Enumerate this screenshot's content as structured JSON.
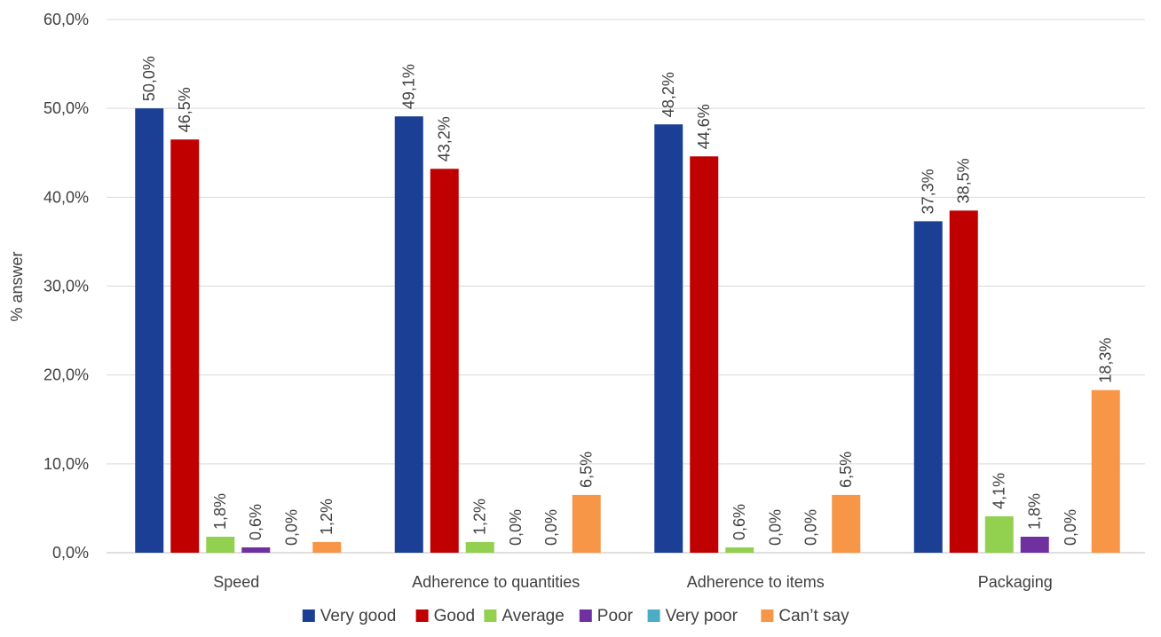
{
  "chart_data": {
    "type": "bar",
    "title": "",
    "xlabel": "",
    "ylabel": "% answer",
    "ylim": [
      0,
      60
    ],
    "yticks": [
      0,
      10,
      20,
      30,
      40,
      50,
      60
    ],
    "ytick_labels": [
      "0,0%",
      "10,0%",
      "20,0%",
      "30,0%",
      "40,0%",
      "50,0%",
      "60,0%"
    ],
    "grid": true,
    "legend_position": "bottom",
    "categories": [
      "Speed",
      "Adherence to quantities",
      "Adherence to items",
      "Packaging"
    ],
    "series": [
      {
        "name": "Very good",
        "color": "#1a3f94",
        "values": [
          50.0,
          49.1,
          48.2,
          37.3
        ],
        "labels": [
          "50,0%",
          "49,1%",
          "48,2%",
          "37,3%"
        ]
      },
      {
        "name": "Good",
        "color": "#c00000",
        "values": [
          46.5,
          43.2,
          44.6,
          38.5
        ],
        "labels": [
          "46,5%",
          "43,2%",
          "44,6%",
          "38,5%"
        ]
      },
      {
        "name": "Average",
        "color": "#92d050",
        "values": [
          1.8,
          1.2,
          0.6,
          4.1
        ],
        "labels": [
          "1,8%",
          "1,2%",
          "0,6%",
          "4,1%"
        ]
      },
      {
        "name": "Poor",
        "color": "#7030a0",
        "values": [
          0.6,
          0.0,
          0.0,
          1.8
        ],
        "labels": [
          "0,6%",
          "0,0%",
          "0,0%",
          "1,8%"
        ]
      },
      {
        "name": "Very poor",
        "color": "#4bacc6",
        "values": [
          0.0,
          0.0,
          0.0,
          0.0
        ],
        "labels": [
          "0,0%",
          "0,0%",
          "0,0%",
          "0,0%"
        ]
      },
      {
        "name": "Can’t say",
        "color": "#f79646",
        "values": [
          1.2,
          6.5,
          6.5,
          18.3
        ],
        "labels": [
          "1,2%",
          "6,5%",
          "6,5%",
          "18,3%"
        ]
      }
    ]
  }
}
